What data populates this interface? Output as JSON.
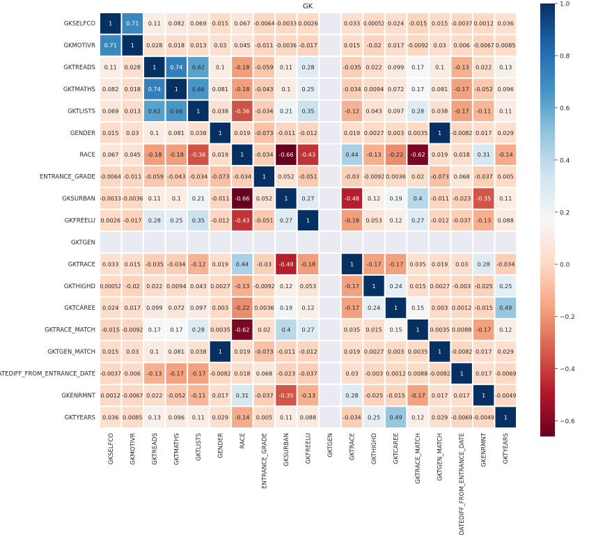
{
  "chart_data": {
    "type": "heatmap",
    "title": "GK",
    "colormap": "RdBu",
    "vmin": -0.66,
    "vmax": 1.0,
    "nan_color": "#eaeaf2",
    "annotated": true,
    "colorbar_ticks": [
      "1.0",
      "0.8",
      "0.6",
      "0.4",
      "0.2",
      "0.0",
      "−0.2",
      "−0.4",
      "−0.6"
    ],
    "colorbar_tick_values": [
      1.0,
      0.8,
      0.6,
      0.4,
      0.2,
      0.0,
      -0.2,
      -0.4,
      -0.6
    ],
    "labels": [
      "GKSELFCO",
      "GKMOTIVR",
      "GKTREADS",
      "GKTMATHS",
      "GKTLISTS",
      "GENDER",
      "RACE",
      "ENTRANCE_GRADE",
      "GKSURBAN",
      "GKFREELU",
      "GKTGEN",
      "GKTRACE",
      "GKTHIGHD",
      "GKTCAREE",
      "GKTRACE_MATCH",
      "GKTGEN_MATCH",
      "DATEDIFF_FROM_ENTRANCE_DATE",
      "GKENRMNT",
      "GKTYEARS"
    ],
    "matrix": [
      [
        1,
        0.71,
        0.11,
        0.082,
        0.069,
        0.015,
        0.067,
        -0.0064,
        -0.0033,
        0.0026,
        null,
        0.033,
        0.00052,
        0.024,
        -0.015,
        0.015,
        -0.0037,
        0.0012,
        0.036
      ],
      [
        0.71,
        1,
        0.028,
        0.018,
        0.013,
        0.03,
        0.045,
        -0.011,
        -0.0036,
        -0.017,
        null,
        0.015,
        -0.02,
        0.017,
        -0.0092,
        0.03,
        0.006,
        -0.0067,
        0.0085
      ],
      [
        0.11,
        0.028,
        1,
        0.74,
        0.62,
        0.1,
        -0.18,
        -0.059,
        0.11,
        0.28,
        null,
        -0.035,
        0.022,
        0.099,
        0.17,
        0.1,
        -0.13,
        0.022,
        0.13
      ],
      [
        0.082,
        0.018,
        0.74,
        1,
        0.66,
        0.081,
        -0.18,
        -0.043,
        0.1,
        0.25,
        null,
        -0.034,
        0.0094,
        0.072,
        0.17,
        0.081,
        -0.17,
        -0.052,
        0.096
      ],
      [
        0.069,
        0.013,
        0.62,
        0.66,
        1,
        0.038,
        -0.36,
        -0.034,
        0.21,
        0.35,
        null,
        -0.12,
        0.043,
        0.097,
        0.28,
        0.038,
        -0.17,
        -0.11,
        0.11
      ],
      [
        0.015,
        0.03,
        0.1,
        0.081,
        0.038,
        1,
        0.019,
        -0.073,
        -0.011,
        -0.012,
        null,
        0.019,
        0.0027,
        0.003,
        0.0035,
        1,
        -0.0082,
        0.017,
        0.029
      ],
      [
        0.067,
        0.045,
        -0.18,
        -0.18,
        -0.36,
        0.019,
        1,
        -0.034,
        -0.66,
        -0.43,
        null,
        0.44,
        -0.13,
        -0.22,
        -0.62,
        0.019,
        0.018,
        0.31,
        -0.14
      ],
      [
        -0.0064,
        -0.011,
        -0.059,
        -0.043,
        -0.034,
        -0.073,
        -0.034,
        1,
        0.052,
        -0.051,
        null,
        -0.03,
        -0.0092,
        0.0036,
        0.02,
        -0.073,
        0.068,
        -0.037,
        0.005
      ],
      [
        -0.0033,
        -0.0036,
        0.11,
        0.1,
        0.21,
        -0.011,
        -0.66,
        0.052,
        1,
        0.27,
        null,
        -0.48,
        0.12,
        0.19,
        0.4,
        -0.011,
        -0.023,
        -0.35,
        0.11
      ],
      [
        0.0026,
        -0.017,
        0.28,
        0.25,
        0.35,
        -0.012,
        -0.43,
        -0.051,
        0.27,
        1,
        null,
        -0.18,
        0.053,
        0.12,
        0.27,
        -0.012,
        -0.037,
        -0.13,
        0.088
      ],
      [
        null,
        null,
        null,
        null,
        null,
        null,
        null,
        null,
        null,
        null,
        null,
        null,
        null,
        null,
        null,
        null,
        null,
        null,
        null
      ],
      [
        0.033,
        0.015,
        -0.035,
        -0.034,
        -0.12,
        0.019,
        0.44,
        -0.03,
        -0.48,
        -0.18,
        null,
        1,
        -0.17,
        -0.17,
        0.035,
        0.019,
        0.03,
        0.28,
        -0.034
      ],
      [
        0.00052,
        -0.02,
        0.022,
        0.0094,
        0.043,
        0.0027,
        -0.13,
        -0.0092,
        0.12,
        0.053,
        null,
        -0.17,
        1,
        0.24,
        0.015,
        0.0027,
        -0.003,
        -0.025,
        0.25
      ],
      [
        0.024,
        0.017,
        0.099,
        0.072,
        0.097,
        0.003,
        -0.22,
        0.0036,
        0.19,
        0.12,
        null,
        -0.17,
        0.24,
        1,
        0.15,
        0.003,
        0.0012,
        -0.015,
        0.49
      ],
      [
        -0.015,
        -0.0092,
        0.17,
        0.17,
        0.28,
        0.0035,
        -0.62,
        0.02,
        0.4,
        0.27,
        null,
        0.035,
        0.015,
        0.15,
        1,
        0.0035,
        0.0088,
        -0.17,
        0.12
      ],
      [
        0.015,
        0.03,
        0.1,
        0.081,
        0.038,
        1,
        0.019,
        -0.073,
        -0.011,
        -0.012,
        null,
        0.019,
        0.0027,
        0.003,
        0.0035,
        1,
        -0.0082,
        0.017,
        0.029
      ],
      [
        -0.0037,
        0.006,
        -0.13,
        -0.17,
        -0.17,
        -0.0082,
        0.018,
        0.068,
        -0.023,
        -0.037,
        null,
        0.03,
        -0.003,
        0.0012,
        0.0088,
        -0.0082,
        1,
        0.017,
        -0.0069
      ],
      [
        0.0012,
        -0.0067,
        0.022,
        -0.052,
        -0.11,
        0.017,
        0.31,
        -0.037,
        -0.35,
        -0.13,
        null,
        0.28,
        -0.025,
        -0.015,
        -0.17,
        0.017,
        0.017,
        1,
        -0.0049
      ],
      [
        0.036,
        0.0085,
        0.13,
        0.096,
        0.11,
        0.029,
        -0.14,
        0.005,
        0.11,
        0.088,
        null,
        -0.034,
        0.25,
        0.49,
        0.12,
        0.029,
        -0.0069,
        -0.0049,
        1
      ]
    ]
  }
}
